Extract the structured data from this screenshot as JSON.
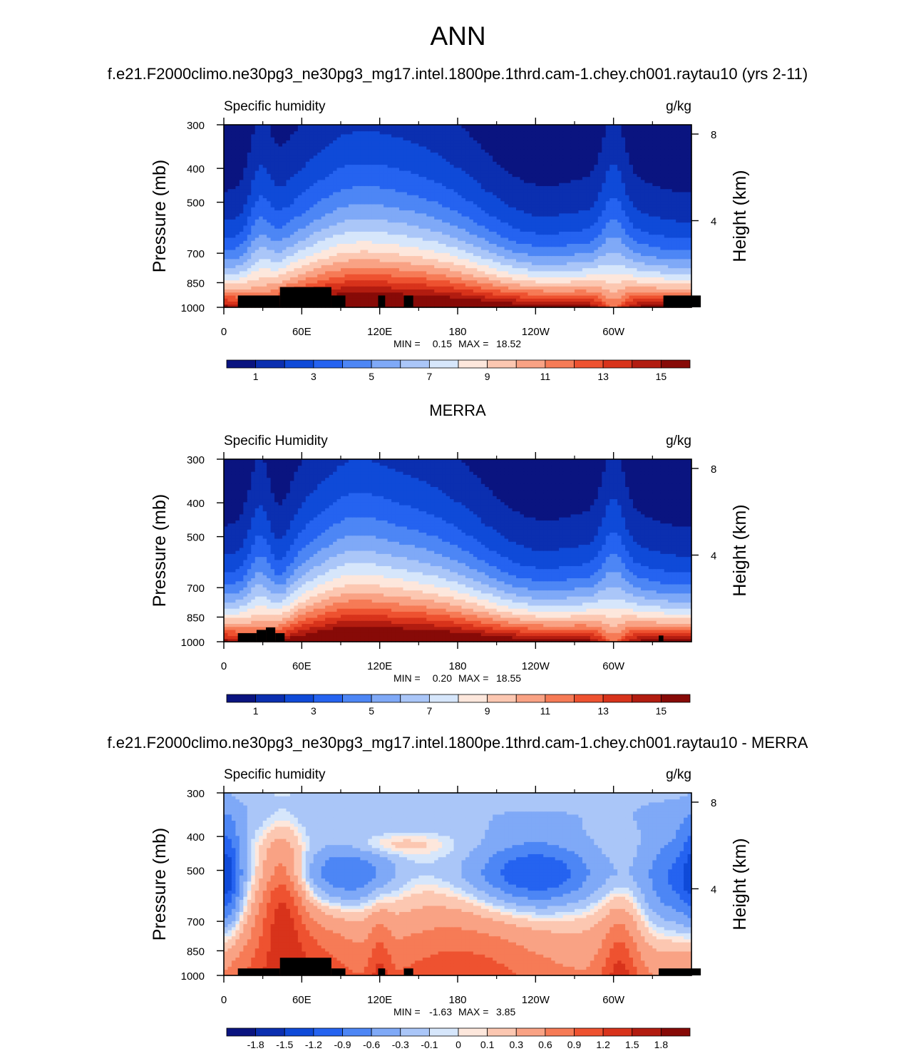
{
  "page": {
    "title": "ANN"
  },
  "levels": {
    "abs": [
      1,
      2,
      3,
      4,
      5,
      6,
      7,
      8,
      9,
      10,
      11,
      12,
      13,
      14,
      15
    ],
    "abs_labels": [
      "1",
      "3",
      "5",
      "7",
      "9",
      "11",
      "13",
      "15"
    ],
    "diff": [
      -1.8,
      -1.5,
      -1.2,
      -0.9,
      -0.6,
      -0.3,
      -0.1,
      0,
      0.1,
      0.3,
      0.6,
      0.9,
      1.2,
      1.5,
      1.8
    ],
    "diff_labels": [
      "-1.8",
      "-1.5",
      "-1.2",
      "-0.9",
      "-0.6",
      "-0.3",
      "-0.1",
      "0",
      "0.1",
      "0.3",
      "0.6",
      "0.9",
      "1.2",
      "1.5",
      "1.8"
    ]
  },
  "colors": [
    "#0a1480",
    "#0b2fb0",
    "#0f4ad8",
    "#2563f0",
    "#4d86f5",
    "#7fa9f7",
    "#aac6f8",
    "#d6e6fb",
    "#fde7dc",
    "#fcc7b1",
    "#f9a284",
    "#f67b56",
    "#ee5230",
    "#d8331b",
    "#b21c10",
    "#870a07"
  ],
  "chart_data": [
    {
      "type": "contour",
      "id": "model",
      "title": "f.e21.F2000climo.ne30pg3_ne30pg3_mg17.intel.1800pe.1thrd.cam-1.chey.ch001.raytau10 (yrs 2-11)",
      "left_string": "Specific humidity",
      "right_string": "g/kg",
      "ylabel": "Pressure (mb)",
      "ylabel_right": "Height (km)",
      "x_ticks": [
        "0",
        "60E",
        "120E",
        "180",
        "120W",
        "60W"
      ],
      "y_ticks": [
        "300",
        "400",
        "500",
        "700",
        "850",
        "1000"
      ],
      "right_ticks": [
        "8",
        "4"
      ],
      "xlim": [
        0,
        360
      ],
      "ylim": [
        1000,
        300
      ],
      "y_scale": "log-pressure",
      "stats": {
        "min_label": "MIN =",
        "min": "0.15",
        "max_label": "MAX =",
        "max": "18.52"
      },
      "levels": "abs"
    },
    {
      "type": "contour",
      "id": "obs",
      "title": "MERRA",
      "left_string": "Specific Humidity",
      "right_string": "g/kg",
      "ylabel": "Pressure (mb)",
      "ylabel_right": "Height (km)",
      "x_ticks": [
        "0",
        "60E",
        "120E",
        "180",
        "120W",
        "60W"
      ],
      "y_ticks": [
        "300",
        "400",
        "500",
        "700",
        "850",
        "1000"
      ],
      "right_ticks": [
        "8",
        "4"
      ],
      "xlim": [
        0,
        360
      ],
      "ylim": [
        1000,
        300
      ],
      "y_scale": "log-pressure",
      "stats": {
        "min_label": "MIN =",
        "min": "0.20",
        "max_label": "MAX =",
        "max": "18.55"
      },
      "levels": "abs"
    },
    {
      "type": "contour",
      "id": "diff",
      "title": "f.e21.F2000climo.ne30pg3_ne30pg3_mg17.intel.1800pe.1thrd.cam-1.chey.ch001.raytau10 - MERRA",
      "left_string": "Specific humidity",
      "right_string": "g/kg",
      "ylabel": "Pressure (mb)",
      "ylabel_right": "Height (km)",
      "x_ticks": [
        "0",
        "60E",
        "120E",
        "180",
        "120W",
        "60W"
      ],
      "y_ticks": [
        "300",
        "400",
        "500",
        "700",
        "850",
        "1000"
      ],
      "right_ticks": [
        "8",
        "4"
      ],
      "xlim": [
        0,
        360
      ],
      "ylim": [
        1000,
        300
      ],
      "y_scale": "log-pressure",
      "stats": {
        "min_label": "MIN =",
        "min": "-1.63",
        "max_label": "MAX =",
        "max": "3.85"
      },
      "levels": "diff"
    }
  ]
}
